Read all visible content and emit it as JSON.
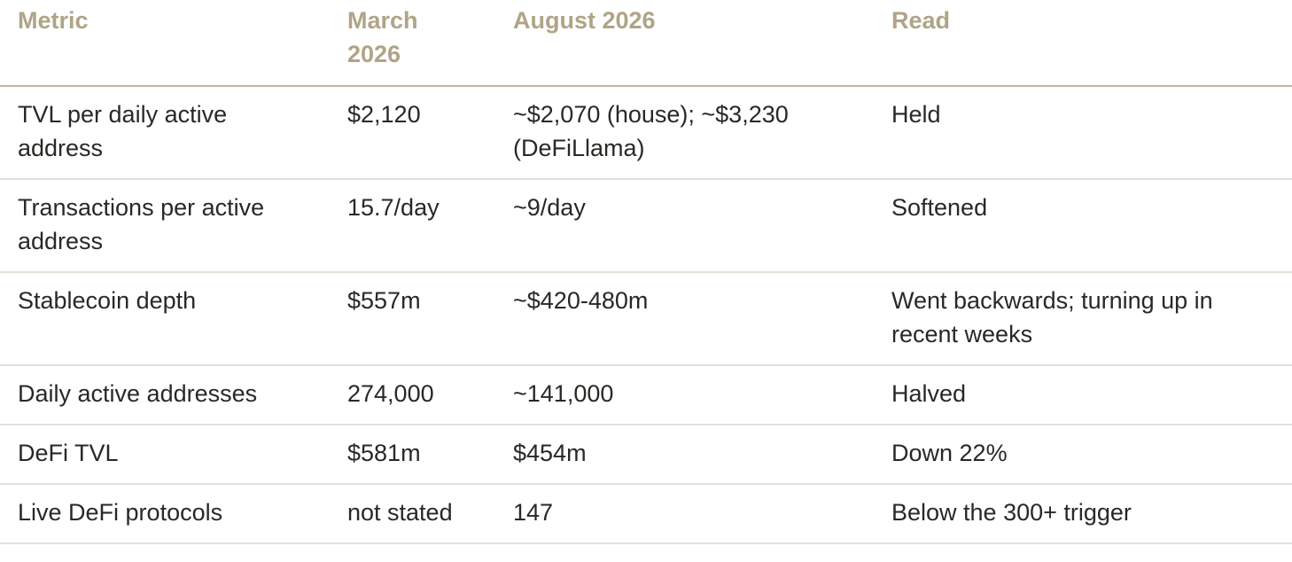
{
  "table": {
    "headers": [
      "Metric",
      "March 2026",
      "August 2026",
      "Read"
    ],
    "rows": [
      [
        "TVL per daily active address",
        "$2,120",
        "~$2,070 (house); ~$3,230 (DeFiLlama)",
        "Held"
      ],
      [
        "Transactions per active address",
        "15.7/day",
        "~9/day",
        "Softened"
      ],
      [
        "Stablecoin depth",
        "$557m",
        "~$420-480m",
        "Went backwards; turning up in recent weeks"
      ],
      [
        "Daily active addresses",
        "274,000",
        "~141,000",
        "Halved"
      ],
      [
        "DeFi TVL",
        "$581m",
        "$454m",
        "Down 22%"
      ],
      [
        "Live DeFi protocols",
        "not stated",
        "147",
        "Below the 300+ trigger"
      ]
    ]
  },
  "colors": {
    "header_text": "#b0a487",
    "header_rule": "#c2b79c",
    "row_rule": "#e3e0d8",
    "body_text": "#2a2825"
  }
}
